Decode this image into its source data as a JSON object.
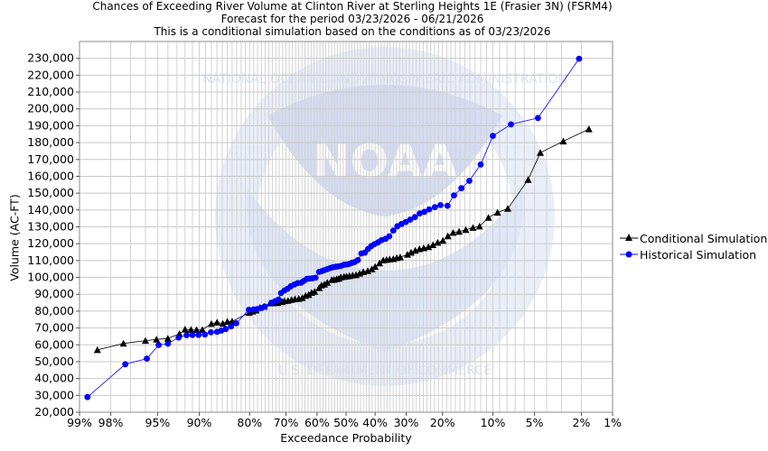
{
  "title": {
    "line1": "Chances of Exceeding River Volume at Clinton River at Sterling Heights 1E (Frasier 3N) (FSRM4)",
    "line2": "Forecast for the period 03/23/2026 - 06/21/2026",
    "line3": "This is a conditional simulation based on the conditions as of 03/23/2026"
  },
  "watermark": {
    "logo_text": "NOAA",
    "ring_top": "NATIONAL OCEANIC AND ATMOSPHERIC ADMINISTRATION",
    "ring_bottom": "U.S. DEPARTMENT OF COMMERCE",
    "colors": {
      "light": "#e6ecf8",
      "mid": "#d3dcf2"
    }
  },
  "chart_data": {
    "type": "line",
    "xlabel": "Exceedance Probability",
    "ylabel": "Volume (AC-FT)",
    "x_scale": "normal-probability",
    "x_ticks": [
      {
        "p": 99,
        "label": "99%"
      },
      {
        "p": 98,
        "label": "98%"
      },
      {
        "p": 95,
        "label": "95%"
      },
      {
        "p": 90,
        "label": "90%"
      },
      {
        "p": 80,
        "label": "80%"
      },
      {
        "p": 70,
        "label": "70%"
      },
      {
        "p": 60,
        "label": "60%"
      },
      {
        "p": 50,
        "label": "50%"
      },
      {
        "p": 40,
        "label": "40%"
      },
      {
        "p": 30,
        "label": "30%"
      },
      {
        "p": 20,
        "label": "20%"
      },
      {
        "p": 10,
        "label": "10%"
      },
      {
        "p": 5,
        "label": "5%"
      },
      {
        "p": 2,
        "label": "2%"
      },
      {
        "p": 1,
        "label": "1%"
      }
    ],
    "y_ticks": [
      "20,000",
      "30,000",
      "40,000",
      "50,000",
      "60,000",
      "70,000",
      "80,000",
      "90,000",
      "100,000",
      "110,000",
      "120,000",
      "130,000",
      "140,000",
      "150,000",
      "160,000",
      "170,000",
      "180,000",
      "190,000",
      "200,000",
      "210,000",
      "220,000",
      "230,000"
    ],
    "ylim": [
      20000,
      240000
    ],
    "xlim_percent": [
      99,
      1
    ],
    "grid": true,
    "legend_position": "right",
    "series": [
      {
        "name": "Conditional Simulation",
        "color": "#000000",
        "marker": "triangle",
        "points": [
          [
            98.5,
            57000
          ],
          [
            97.4,
            60800
          ],
          [
            96,
            62500
          ],
          [
            95.1,
            63200
          ],
          [
            94,
            63800
          ],
          [
            92.7,
            66500
          ],
          [
            92,
            69200
          ],
          [
            91.2,
            69000
          ],
          [
            90.4,
            68900
          ],
          [
            89.5,
            69000
          ],
          [
            88,
            72500
          ],
          [
            87,
            73300
          ],
          [
            85.9,
            72600
          ],
          [
            85,
            73800
          ],
          [
            84,
            73900
          ],
          [
            80.1,
            79100
          ],
          [
            79.3,
            79800
          ],
          [
            78.4,
            80500
          ],
          [
            77.4,
            82100
          ],
          [
            76.3,
            82700
          ],
          [
            74.7,
            84700
          ],
          [
            73.5,
            84800
          ],
          [
            72.4,
            84900
          ],
          [
            71.2,
            85500
          ],
          [
            70.5,
            86100
          ],
          [
            69.4,
            86200
          ],
          [
            68.3,
            86800
          ],
          [
            67.2,
            87200
          ],
          [
            66,
            87400
          ],
          [
            64.9,
            87900
          ],
          [
            63.8,
            89200
          ],
          [
            62.8,
            89700
          ],
          [
            61.8,
            90900
          ],
          [
            60.8,
            91600
          ],
          [
            59.3,
            93800
          ],
          [
            58.5,
            95300
          ],
          [
            57.5,
            95900
          ],
          [
            56.5,
            96900
          ],
          [
            55,
            98500
          ],
          [
            54.2,
            98700
          ],
          [
            53.3,
            99100
          ],
          [
            52.5,
            99400
          ],
          [
            51.8,
            100200
          ],
          [
            50.7,
            100400
          ],
          [
            49.8,
            100600
          ],
          [
            48.8,
            100900
          ],
          [
            47.7,
            101300
          ],
          [
            46.5,
            101500
          ],
          [
            45.3,
            102400
          ],
          [
            44,
            103300
          ],
          [
            42.5,
            103900
          ],
          [
            41.1,
            104900
          ],
          [
            40,
            106400
          ],
          [
            38.5,
            108500
          ],
          [
            37.3,
            110200
          ],
          [
            36.2,
            110500
          ],
          [
            35.2,
            110800
          ],
          [
            34,
            111000
          ],
          [
            32.9,
            111600
          ],
          [
            31.8,
            112000
          ],
          [
            29.6,
            113600
          ],
          [
            28.5,
            114800
          ],
          [
            27.3,
            116000
          ],
          [
            26.1,
            116900
          ],
          [
            24.9,
            117400
          ],
          [
            23.6,
            118100
          ],
          [
            22.4,
            119300
          ],
          [
            21.2,
            120700
          ],
          [
            19.9,
            121800
          ],
          [
            18.7,
            124500
          ],
          [
            17.5,
            126600
          ],
          [
            16.2,
            127200
          ],
          [
            14.8,
            128300
          ],
          [
            13.4,
            129500
          ],
          [
            12.2,
            130300
          ],
          [
            10.7,
            135500
          ],
          [
            9.3,
            138500
          ],
          [
            7.9,
            140800
          ],
          [
            5.6,
            158000
          ],
          [
            4.5,
            174000
          ],
          [
            2.9,
            180800
          ],
          [
            1.7,
            188000
          ]
        ]
      },
      {
        "name": "Historical Simulation",
        "color": "#0000ff",
        "marker": "circle",
        "points": [
          [
            98.8,
            29000
          ],
          [
            97.3,
            48500
          ],
          [
            95.9,
            51800
          ],
          [
            94.9,
            59900
          ],
          [
            94,
            60700
          ],
          [
            92.8,
            64300
          ],
          [
            91.8,
            65700
          ],
          [
            91,
            65800
          ],
          [
            90.1,
            65900
          ],
          [
            89.1,
            66100
          ],
          [
            88.1,
            67400
          ],
          [
            87,
            67700
          ],
          [
            86.2,
            68400
          ],
          [
            85.3,
            69300
          ],
          [
            84.2,
            71000
          ],
          [
            83.1,
            72800
          ],
          [
            80.2,
            80800
          ],
          [
            79,
            81000
          ],
          [
            78.1,
            81200
          ],
          [
            77,
            81800
          ],
          [
            76.1,
            82700
          ],
          [
            74.2,
            85000
          ],
          [
            73.2,
            85900
          ],
          [
            72.2,
            86800
          ],
          [
            71.5,
            90700
          ],
          [
            70.5,
            92200
          ],
          [
            69.5,
            93300
          ],
          [
            68.5,
            94800
          ],
          [
            67.4,
            95800
          ],
          [
            66.4,
            96600
          ],
          [
            65.3,
            96800
          ],
          [
            64.4,
            97900
          ],
          [
            63.4,
            99100
          ],
          [
            62.5,
            99300
          ],
          [
            61.5,
            99500
          ],
          [
            60.5,
            99800
          ],
          [
            59.3,
            103300
          ],
          [
            58.4,
            103700
          ],
          [
            57.5,
            104300
          ],
          [
            56.5,
            104900
          ],
          [
            55.5,
            105600
          ],
          [
            54.6,
            106000
          ],
          [
            53.7,
            106300
          ],
          [
            52.8,
            106500
          ],
          [
            51.8,
            106800
          ],
          [
            50.8,
            107500
          ],
          [
            49.9,
            107700
          ],
          [
            48.9,
            108000
          ],
          [
            47.9,
            108700
          ],
          [
            47,
            109100
          ],
          [
            45.9,
            110300
          ],
          [
            44.7,
            114200
          ],
          [
            43.5,
            114700
          ],
          [
            42.4,
            116900
          ],
          [
            41.3,
            118600
          ],
          [
            40.2,
            119800
          ],
          [
            39,
            120800
          ],
          [
            37.8,
            122200
          ],
          [
            36.5,
            122900
          ],
          [
            35.3,
            124400
          ],
          [
            34,
            127800
          ],
          [
            32.7,
            130400
          ],
          [
            31.4,
            131700
          ],
          [
            30.1,
            132900
          ],
          [
            28.8,
            134300
          ],
          [
            27.4,
            135800
          ],
          [
            26,
            138000
          ],
          [
            24.7,
            138900
          ],
          [
            23.4,
            140400
          ],
          [
            21.9,
            141700
          ],
          [
            20.5,
            142900
          ],
          [
            18.8,
            142500
          ],
          [
            17.3,
            148700
          ],
          [
            15.7,
            152900
          ],
          [
            14.1,
            157300
          ],
          [
            12,
            167000
          ],
          [
            10,
            184000
          ],
          [
            7.5,
            190800
          ],
          [
            4.7,
            194600
          ],
          [
            2.1,
            229800
          ]
        ]
      }
    ]
  }
}
